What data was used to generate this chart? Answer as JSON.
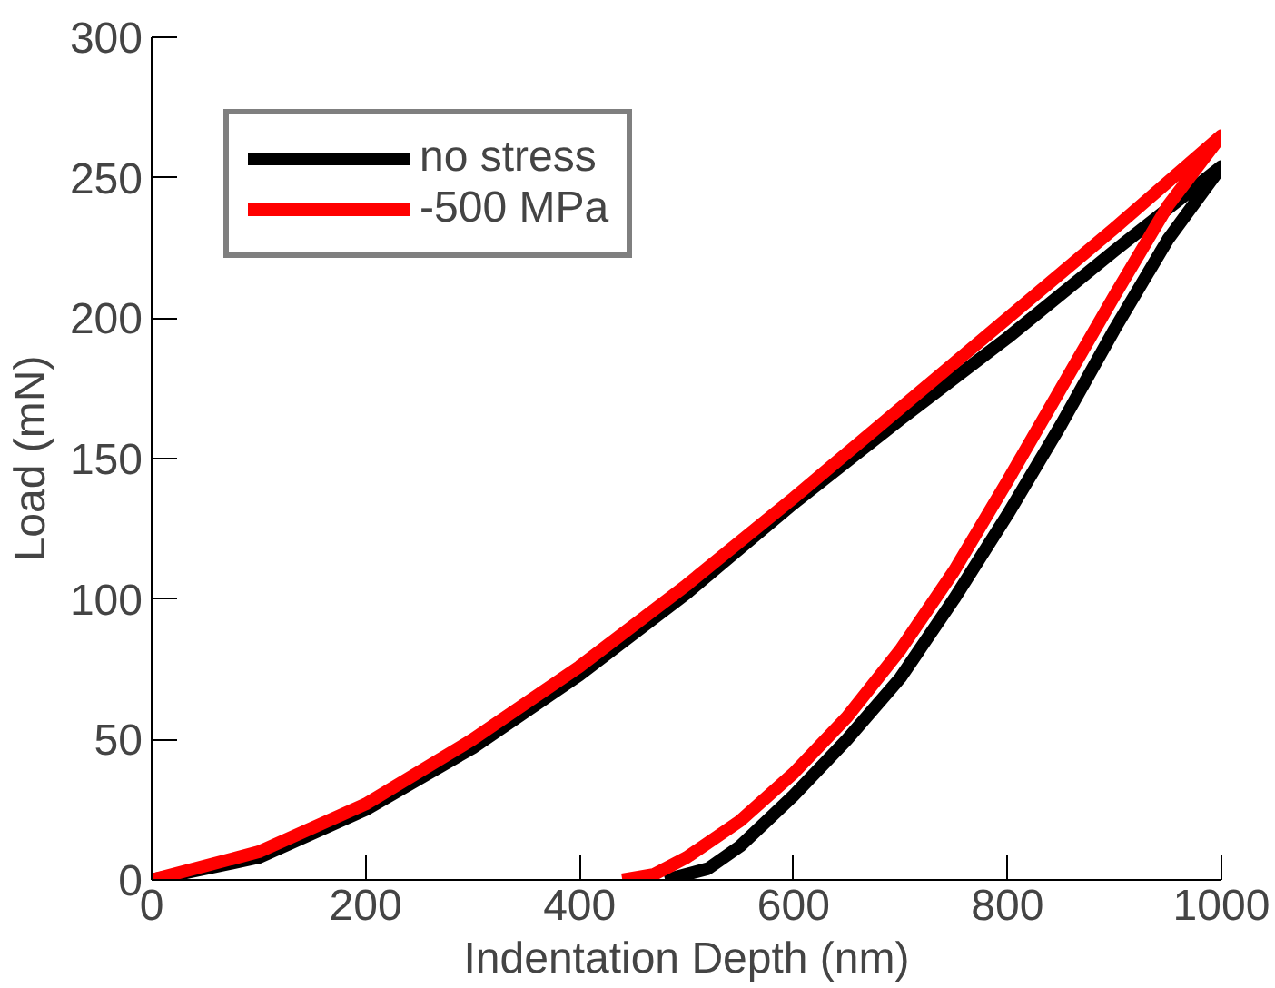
{
  "chart_data": {
    "type": "line",
    "xlabel": "Indentation Depth (nm)",
    "ylabel": "Load (mN)",
    "xlim": [
      0,
      1000
    ],
    "ylim": [
      0,
      300
    ],
    "xticks": [
      0,
      200,
      400,
      600,
      800,
      1000
    ],
    "yticks": [
      0,
      50,
      100,
      150,
      200,
      250,
      300
    ],
    "grid": false,
    "legend": "top left",
    "marker": "none",
    "line_style": "solid",
    "series": [
      {
        "name": "no stress",
        "color": "#000000",
        "x": [
          0,
          100,
          200,
          300,
          400,
          500,
          600,
          700,
          800,
          900,
          1000,
          950,
          900,
          850,
          800,
          750,
          700,
          650,
          600,
          550,
          520,
          480
        ],
        "values": [
          0,
          8,
          25,
          47,
          73,
          102,
          134,
          164,
          193,
          224,
          254,
          228,
          196,
          162,
          130,
          100,
          72,
          50,
          30,
          12,
          4,
          0
        ]
      },
      {
        "name": "-500 MPa",
        "color": "#ff0000",
        "x": [
          0,
          100,
          200,
          300,
          400,
          500,
          600,
          700,
          800,
          900,
          1000,
          950,
          900,
          850,
          800,
          750,
          700,
          650,
          600,
          550,
          500,
          470,
          440
        ],
        "values": [
          0,
          10,
          27,
          50,
          76,
          105,
          136,
          168,
          200,
          232,
          265,
          240,
          208,
          175,
          142,
          110,
          82,
          58,
          38,
          21,
          8,
          2,
          0
        ]
      }
    ]
  }
}
